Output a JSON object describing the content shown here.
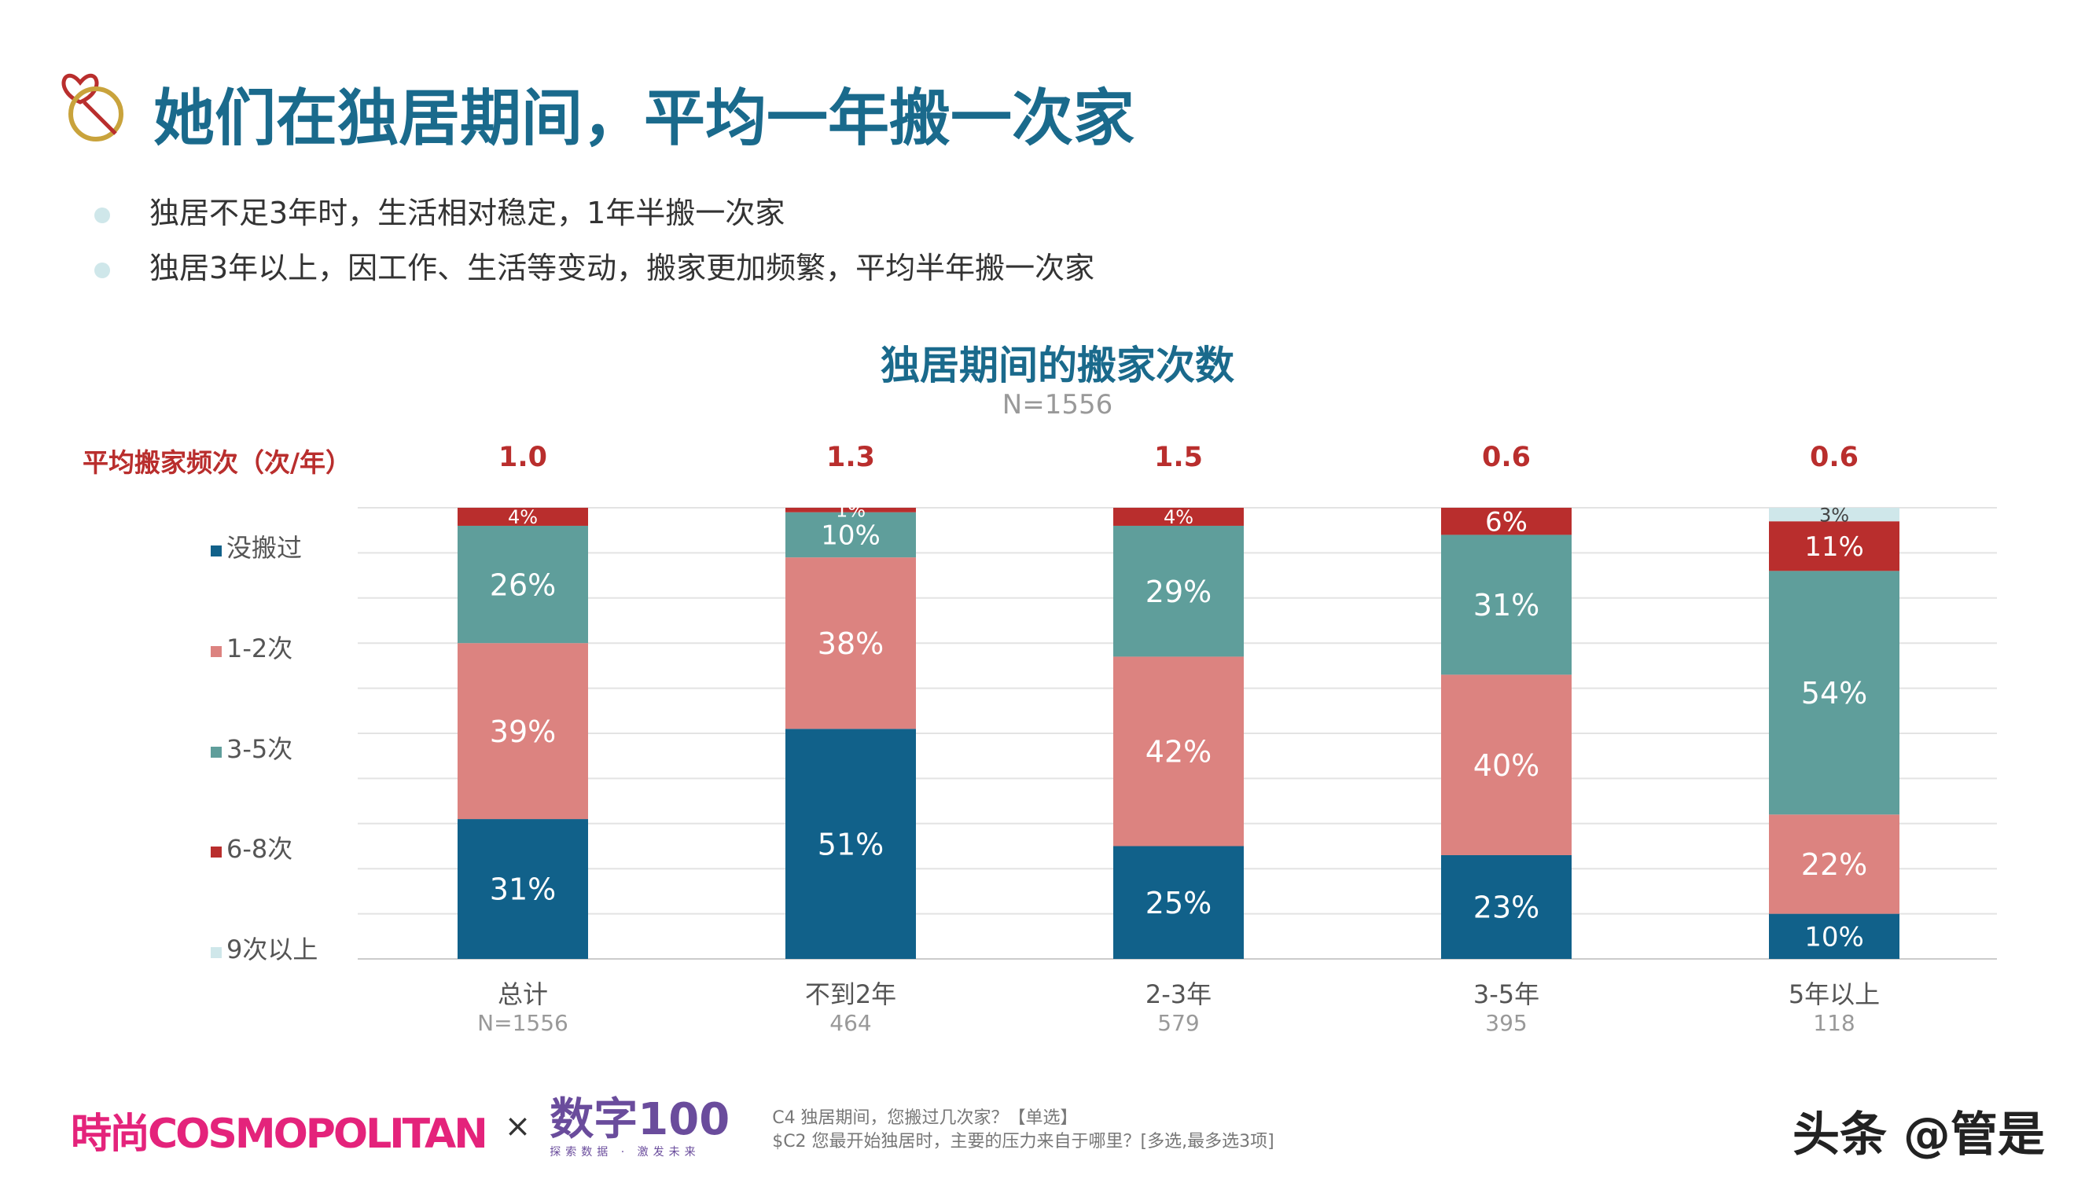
{
  "title": "她们在独居期间，平均一年搬一次家",
  "bullets": [
    "独居不足3年时，生活相对稳定，1年半搬一次家",
    "独居3年以上，因工作、生活等变动，搬家更加频繁，平均半年搬一次家"
  ],
  "footer": {
    "q1": "C4 独居期间，您搬过几次家？【单选】",
    "q2": "$C2 您最开始独居时，主要的压力来自于哪里？[多选,最多选3项]",
    "logo1": "時尚COSMOPOLITAN",
    "x": "×",
    "logo2": "数字100",
    "logo2_sub": "探索数据 · 激发未来",
    "watermark": "头条 @管是"
  },
  "chart_data": {
    "type": "bar",
    "stacked": true,
    "title": "独居期间的搬家次数",
    "subtitle": "N=1556",
    "avg_label": "平均搬家频次（次/年）",
    "categories": [
      "总计",
      "不到2年",
      "2-3年",
      "3-5年",
      "5年以上"
    ],
    "category_n": [
      "N=1556",
      "464",
      "579",
      "395",
      "118"
    ],
    "averages": [
      "1.0",
      "1.3",
      "1.5",
      "0.6",
      "0.6"
    ],
    "ylim": [
      0,
      100
    ],
    "series": [
      {
        "name": "没搬过",
        "color": "#11618a",
        "values": [
          31,
          51,
          25,
          23,
          10
        ]
      },
      {
        "name": "1-2次",
        "color": "#dc8380",
        "values": [
          39,
          38,
          42,
          40,
          22
        ]
      },
      {
        "name": "3-5次",
        "color": "#5f9e9b",
        "values": [
          26,
          10,
          29,
          31,
          54
        ]
      },
      {
        "name": "6-8次",
        "color": "#b92e2d",
        "values": [
          4,
          1,
          4,
          6,
          11
        ]
      },
      {
        "name": "9次以上",
        "color": "#cfe7ea",
        "values": [
          0,
          0,
          0,
          0,
          3
        ]
      }
    ]
  }
}
